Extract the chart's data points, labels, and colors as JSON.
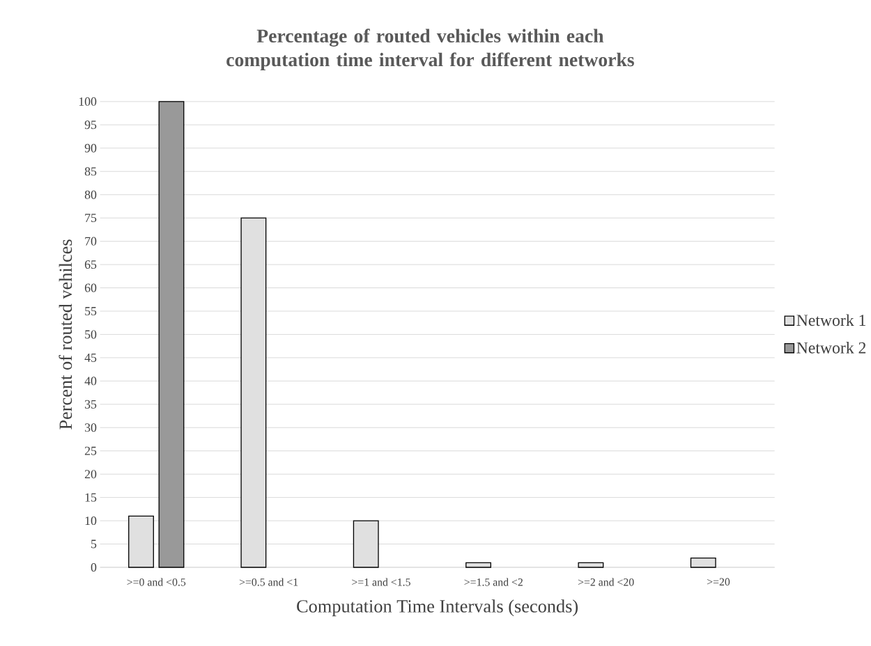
{
  "chart_data": {
    "type": "bar",
    "title": "Percentage of routed vehicles within each computation time interval for different networks",
    "xlabel": "Computation Time Intervals (seconds)",
    "ylabel": "Percent of routed vehilces",
    "categories": [
      ">=0 and <0.5",
      ">=0.5 and <1",
      ">=1 and <1.5",
      ">=1.5 and <2",
      ">=2 and <20",
      ">=20"
    ],
    "series": [
      {
        "name": "Network 1",
        "color": "#e0e0e0",
        "values": [
          11,
          75,
          10,
          1,
          1,
          2
        ]
      },
      {
        "name": "Network 2",
        "color": "#999999",
        "values": [
          100,
          null,
          null,
          null,
          null,
          null
        ]
      }
    ],
    "ylim": [
      0,
      100
    ],
    "yticks": [
      0,
      5,
      10,
      15,
      20,
      25,
      30,
      35,
      40,
      45,
      50,
      55,
      60,
      65,
      70,
      75,
      80,
      85,
      90,
      95,
      100
    ],
    "grid": "y",
    "legend": "right"
  }
}
